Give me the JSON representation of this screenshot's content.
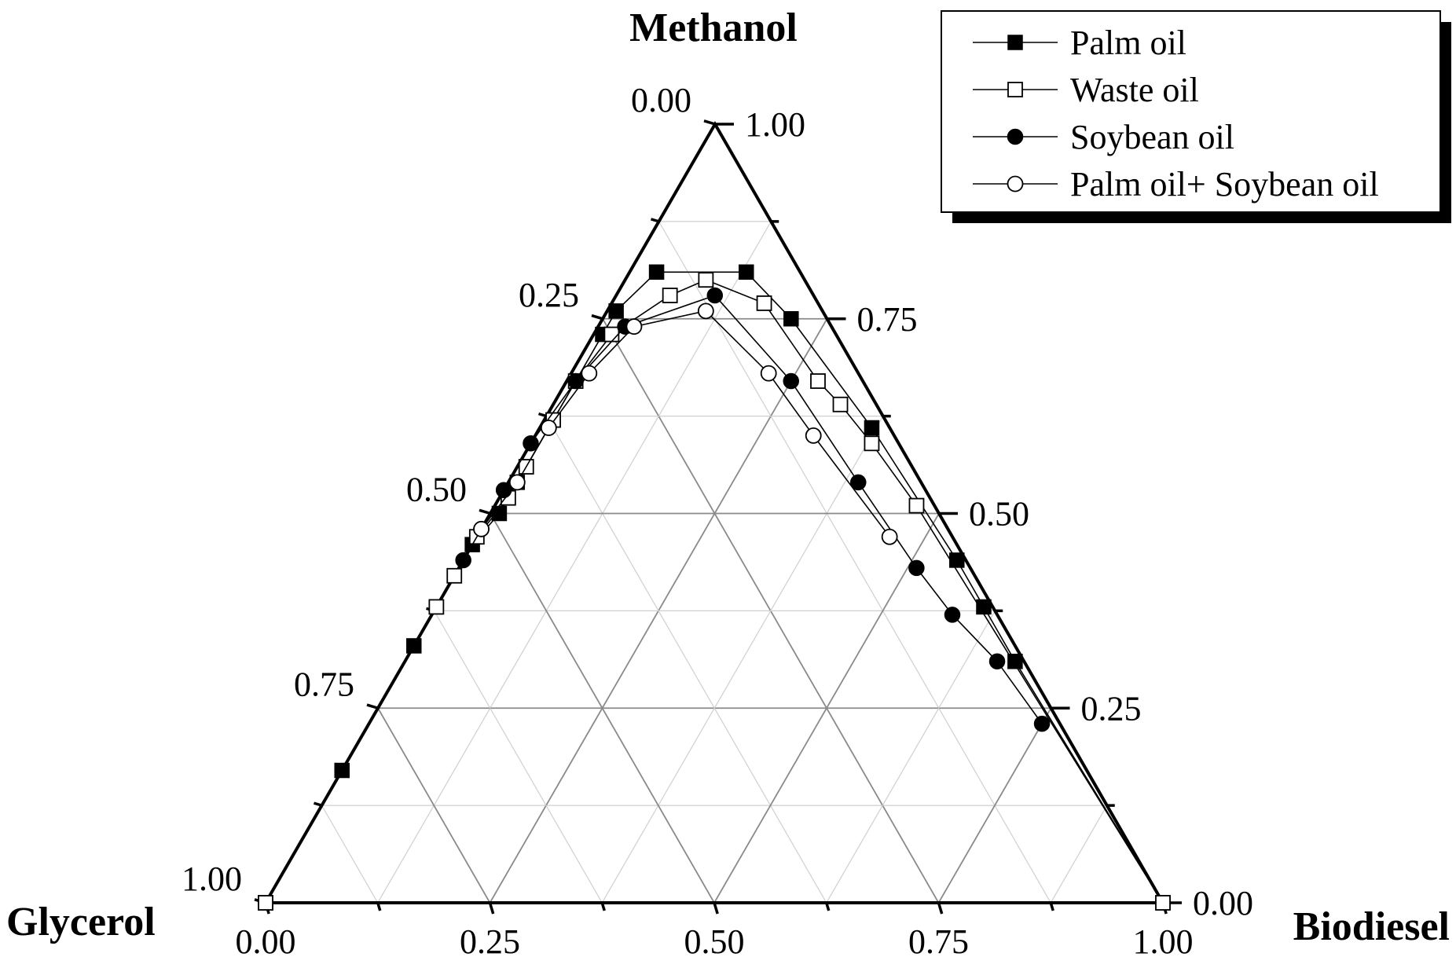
{
  "chart_data": {
    "type": "ternary-scatter",
    "corners": {
      "top": "Methanol",
      "left": "Glycerol",
      "right": "Biodiesel"
    },
    "axes": {
      "bottom_ticks": [
        "0.00",
        "0.25",
        "0.50",
        "0.75",
        "1.00"
      ],
      "left_ticks": [
        "0.00",
        "0.25",
        "0.50",
        "0.75",
        "1.00"
      ],
      "right_ticks": [
        "1.00",
        "0.75",
        "0.50",
        "0.25",
        "0.00"
      ]
    },
    "grid": true,
    "legend_position": "top-right",
    "composition_order": [
      "Methanol",
      "Biodiesel",
      "Glycerol"
    ],
    "series": [
      {
        "name": "Palm oil",
        "marker": "filled-square",
        "points": [
          [
            0.0,
            0.0,
            1.0
          ],
          [
            0.17,
            0.0,
            0.83
          ],
          [
            0.33,
            0.0,
            0.67
          ],
          [
            0.42,
            0.0,
            0.58
          ],
          [
            0.46,
            0.0,
            0.54
          ],
          [
            0.5,
            0.01,
            0.49
          ],
          [
            0.54,
            0.01,
            0.45
          ],
          [
            0.62,
            0.01,
            0.37
          ],
          [
            0.73,
            0.01,
            0.26
          ],
          [
            0.76,
            0.01,
            0.23
          ],
          [
            0.81,
            0.03,
            0.16
          ],
          [
            0.81,
            0.13,
            0.06
          ],
          [
            0.75,
            0.21,
            0.04
          ],
          [
            0.61,
            0.37,
            0.02
          ],
          [
            0.44,
            0.55,
            0.01
          ],
          [
            0.38,
            0.61,
            0.01
          ],
          [
            0.31,
            0.68,
            0.01
          ],
          [
            0.0,
            1.0,
            0.0
          ]
        ]
      },
      {
        "name": "Waste oil",
        "marker": "open-square",
        "points": [
          [
            0.0,
            0.0,
            1.0
          ],
          [
            0.38,
            0.0,
            0.62
          ],
          [
            0.42,
            0.0,
            0.58
          ],
          [
            0.47,
            0.0,
            0.53
          ],
          [
            0.52,
            0.01,
            0.47
          ],
          [
            0.56,
            0.01,
            0.43
          ],
          [
            0.62,
            0.01,
            0.37
          ],
          [
            0.67,
            0.01,
            0.32
          ],
          [
            0.73,
            0.02,
            0.25
          ],
          [
            0.78,
            0.06,
            0.16
          ],
          [
            0.8,
            0.09,
            0.11
          ],
          [
            0.77,
            0.17,
            0.06
          ],
          [
            0.67,
            0.28,
            0.05
          ],
          [
            0.64,
            0.32,
            0.04
          ],
          [
            0.59,
            0.38,
            0.03
          ],
          [
            0.51,
            0.47,
            0.02
          ],
          [
            0.0,
            1.0,
            0.0
          ]
        ]
      },
      {
        "name": "Soybean oil",
        "marker": "filled-circle",
        "points": [
          [
            0.44,
            0.0,
            0.56
          ],
          [
            0.48,
            0.0,
            0.52
          ],
          [
            0.53,
            0.0,
            0.47
          ],
          [
            0.59,
            0.0,
            0.41
          ],
          [
            0.67,
            0.01,
            0.32
          ],
          [
            0.74,
            0.03,
            0.23
          ],
          [
            0.78,
            0.11,
            0.11
          ],
          [
            0.67,
            0.25,
            0.08
          ],
          [
            0.54,
            0.39,
            0.07
          ],
          [
            0.43,
            0.51,
            0.06
          ],
          [
            0.37,
            0.58,
            0.05
          ],
          [
            0.31,
            0.66,
            0.03
          ],
          [
            0.23,
            0.75,
            0.02
          ]
        ]
      },
      {
        "name": "Palm oil+ Soybean oil",
        "marker": "open-circle",
        "points": [
          [
            0.48,
            0.0,
            0.52
          ],
          [
            0.54,
            0.01,
            0.45
          ],
          [
            0.61,
            0.01,
            0.38
          ],
          [
            0.68,
            0.02,
            0.3
          ],
          [
            0.74,
            0.04,
            0.22
          ],
          [
            0.76,
            0.11,
            0.13
          ],
          [
            0.68,
            0.22,
            0.1
          ],
          [
            0.6,
            0.31,
            0.09
          ],
          [
            0.47,
            0.46,
            0.07
          ]
        ]
      }
    ]
  }
}
